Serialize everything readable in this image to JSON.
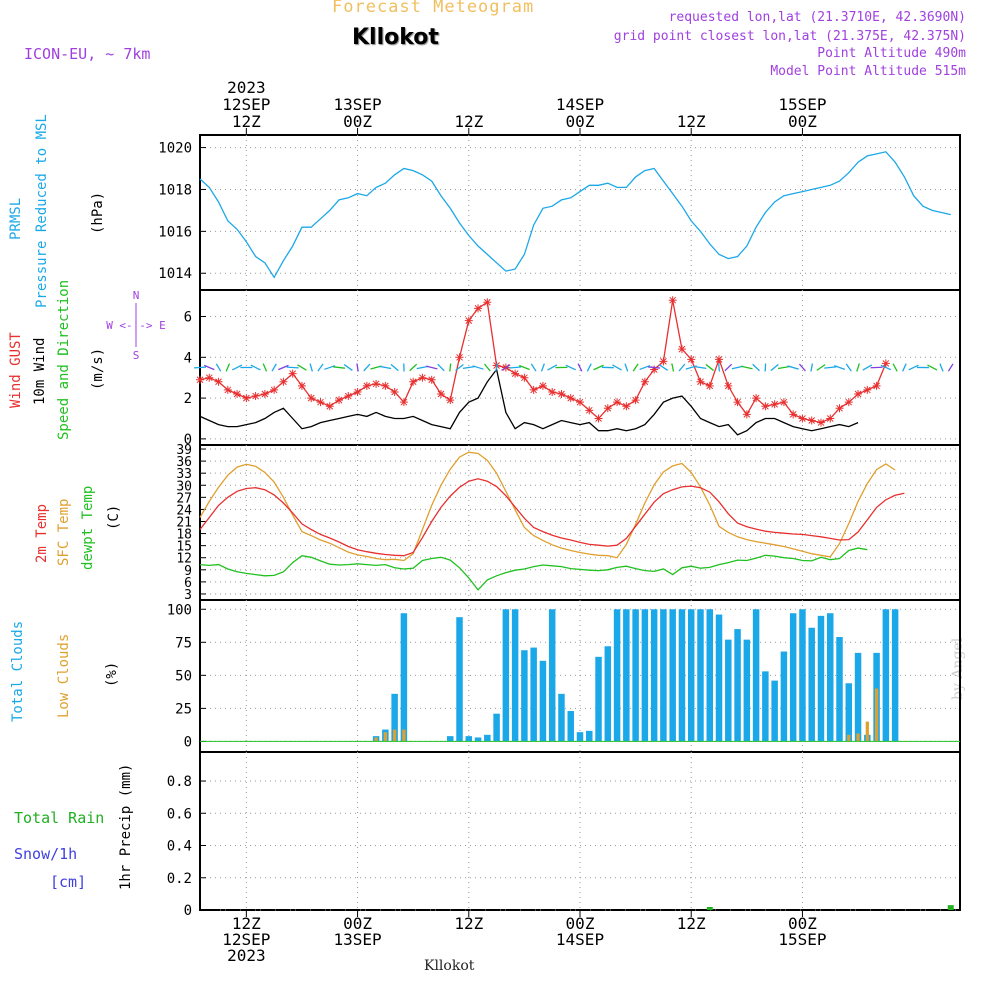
{
  "header": {
    "title": "Forecast Meteogram",
    "location": "Kllokot",
    "model": "ICON-EU, ~ 7km",
    "requested": "requested lon,lat (21.3710E, 42.3690N)",
    "grid_point": "grid point closest lon,lat (21.375E, 42.375N)",
    "point_altitude": "Point Altitude 490m",
    "model_altitude": "Model Point Altitude 515m"
  },
  "footer": {
    "location": "Kllokot",
    "watermark": "by Angel"
  },
  "colors": {
    "pressure": "#1ba8e8",
    "gust": "#e83030",
    "wind": "#000000",
    "wind_dir": "#20c020",
    "temp2m": "#e83030",
    "sfc": "#e0a030",
    "dewpt": "#20c020",
    "total_clouds": "#1ba8e8",
    "low_clouds": "#e0a030",
    "rain": "#20b020",
    "snow": "#4040e0",
    "compass": "#a040e0",
    "grid": "#999999"
  },
  "time_axis": {
    "top_year": "2023",
    "ticks": [
      {
        "hour": 0,
        "top": [
          "12SEP",
          "12Z"
        ],
        "bottom": [
          "12Z",
          "12SEP",
          "2023"
        ]
      },
      {
        "hour": 12,
        "top": [
          "13SEP",
          "00Z"
        ],
        "bottom": [
          "00Z",
          "13SEP"
        ]
      },
      {
        "hour": 24,
        "top": [
          "",
          "12Z"
        ],
        "bottom": [
          "12Z"
        ]
      },
      {
        "hour": 36,
        "top": [
          "14SEP",
          "00Z"
        ],
        "bottom": [
          "00Z",
          "14SEP"
        ]
      },
      {
        "hour": 48,
        "top": [
          "",
          "12Z"
        ],
        "bottom": [
          "12Z"
        ]
      },
      {
        "hour": 60,
        "top": [
          "15SEP",
          "00Z"
        ],
        "bottom": [
          "00Z",
          "15SEP"
        ]
      }
    ]
  },
  "panel_labels": {
    "pressure": [
      "PRMSL",
      "Pressure Reduced to MSL",
      "(hPa)"
    ],
    "wind": [
      "Wind GUST",
      "10m Wind",
      "Speed and Direction",
      "(m/s)"
    ],
    "compass": [
      "N",
      "W <-|-> E",
      "S"
    ],
    "temp": [
      "2m Temp",
      "SFC Temp",
      "dewpt Temp",
      "(C)"
    ],
    "clouds": [
      "Total Clouds",
      "Low Clouds",
      "(%)"
    ],
    "precip": [
      "Total  Rain",
      "Snow/1h",
      "[cm]",
      "1hr Precip (mm)"
    ]
  },
  "chart_data": [
    {
      "id": "pressure",
      "type": "line",
      "ylabel": "(hPa)",
      "ylim": [
        1013.2,
        1020.6
      ],
      "yticks": [
        "1014",
        "1016",
        "1018",
        "1020"
      ],
      "x_hours": [
        -5,
        -4,
        -3,
        -2,
        -1,
        0,
        1,
        2,
        3,
        4,
        5,
        6,
        7,
        8,
        9,
        10,
        11,
        12,
        13,
        14,
        15,
        16,
        17,
        18,
        19,
        20,
        21,
        22,
        23,
        24,
        25,
        26,
        27,
        28,
        29,
        30,
        31,
        32,
        33,
        34,
        35,
        36,
        37,
        38,
        39,
        40,
        41,
        42,
        43,
        44,
        45,
        46,
        47,
        48,
        49,
        50,
        51,
        52,
        53,
        54,
        55,
        56,
        57,
        58,
        59,
        60,
        61,
        62,
        63,
        64,
        65,
        66,
        67,
        68,
        69,
        70,
        71,
        72,
        73,
        74,
        75,
        76
      ],
      "series": [
        {
          "name": "PRMSL",
          "values": [
            1018.5,
            1018.1,
            1017.4,
            1016.5,
            1016.1,
            1015.5,
            1014.8,
            1014.5,
            1013.8,
            1014.6,
            1015.3,
            1016.2,
            1016.2,
            1016.6,
            1017.0,
            1017.5,
            1017.6,
            1017.8,
            1017.7,
            1018.1,
            1018.3,
            1018.7,
            1019.0,
            1018.9,
            1018.7,
            1018.4,
            1017.7,
            1017.1,
            1016.4,
            1015.8,
            1015.3,
            1014.9,
            1014.5,
            1014.1,
            1014.2,
            1014.9,
            1016.3,
            1017.1,
            1017.2,
            1017.5,
            1017.6,
            1017.9,
            1018.2,
            1018.2,
            1018.3,
            1018.1,
            1018.1,
            1018.6,
            1018.9,
            1019.0,
            1018.4,
            1017.8,
            1017.2,
            1016.5,
            1016.0,
            1015.4,
            1014.9,
            1014.7,
            1014.8,
            1015.3,
            1016.2,
            1016.9,
            1017.4,
            1017.7,
            1017.8,
            1017.9,
            1018.0,
            1018.1,
            1018.2,
            1018.4,
            1018.8,
            1019.3,
            1019.6,
            1019.7,
            1019.8,
            1019.3,
            1018.6,
            1017.7,
            1017.2,
            1017.0,
            1016.9,
            1016.8
          ]
        }
      ]
    },
    {
      "id": "wind",
      "type": "line",
      "ylabel": "(m/s)",
      "ylim": [
        -0.3,
        7.3
      ],
      "yticks": [
        "0",
        "2",
        "4",
        "6"
      ],
      "x_hours": [
        -5,
        -4,
        -3,
        -2,
        -1,
        0,
        1,
        2,
        3,
        4,
        5,
        6,
        7,
        8,
        9,
        10,
        11,
        12,
        13,
        14,
        15,
        16,
        17,
        18,
        19,
        20,
        21,
        22,
        23,
        24,
        25,
        26,
        27,
        28,
        29,
        30,
        31,
        32,
        33,
        34,
        35,
        36,
        37,
        38,
        39,
        40,
        41,
        42,
        43,
        44,
        45,
        46,
        47,
        48,
        49,
        50,
        51,
        52,
        53,
        54,
        55,
        56,
        57,
        58,
        59,
        60,
        61,
        62,
        63,
        64,
        65,
        66,
        67,
        68,
        69,
        70,
        71,
        72,
        73,
        74,
        75,
        76
      ],
      "series": [
        {
          "name": "Wind GUST",
          "values": [
            2.9,
            3.0,
            2.8,
            2.4,
            2.2,
            2.0,
            2.1,
            2.2,
            2.4,
            2.8,
            3.2,
            2.6,
            2.0,
            1.8,
            1.6,
            1.9,
            2.1,
            2.3,
            2.6,
            2.7,
            2.6,
            2.3,
            1.8,
            2.8,
            3.0,
            2.9,
            2.2,
            1.9,
            4.0,
            5.8,
            6.4,
            6.7,
            3.6,
            3.5,
            3.2,
            3.0,
            2.4,
            2.6,
            2.3,
            2.2,
            2.0,
            1.8,
            1.4,
            1.0,
            1.5,
            1.8,
            1.6,
            1.9,
            2.8,
            3.4,
            3.8,
            6.8,
            4.4,
            3.9,
            2.8,
            2.6,
            3.9,
            2.6,
            1.8,
            1.2,
            2.0,
            1.6,
            1.7,
            1.8,
            1.2,
            1.0,
            0.9,
            0.8,
            1.0,
            1.5,
            1.8,
            2.2,
            2.4,
            2.6,
            3.7
          ]
        },
        {
          "name": "10m Wind",
          "values": [
            1.1,
            0.9,
            0.7,
            0.6,
            0.6,
            0.7,
            0.8,
            1.0,
            1.3,
            1.5,
            1.0,
            0.5,
            0.6,
            0.8,
            0.9,
            1.0,
            1.1,
            1.2,
            1.1,
            1.3,
            1.1,
            1.0,
            1.0,
            1.1,
            0.9,
            0.7,
            0.6,
            0.5,
            1.3,
            1.8,
            2.0,
            2.8,
            3.4,
            1.3,
            0.5,
            0.8,
            0.7,
            0.5,
            0.7,
            0.9,
            0.8,
            0.7,
            0.8,
            0.4,
            0.4,
            0.5,
            0.4,
            0.5,
            0.7,
            1.2,
            1.8,
            2.0,
            2.1,
            1.6,
            1.0,
            0.8,
            0.6,
            0.7,
            0.2,
            0.4,
            0.8,
            1.0,
            1.0,
            0.8,
            0.6,
            0.5,
            0.4,
            0.5,
            0.6,
            0.7,
            0.6,
            0.8
          ]
        }
      ]
    },
    {
      "id": "temp",
      "type": "line",
      "ylabel": "(C)",
      "ylim": [
        1.5,
        40
      ],
      "yticks": [
        "3",
        "6",
        "9",
        "12",
        "15",
        "18",
        "21",
        "24",
        "27",
        "30",
        "33",
        "36",
        "39"
      ],
      "x_hours": [
        -5,
        -4,
        -3,
        -2,
        -1,
        0,
        1,
        2,
        3,
        4,
        5,
        6,
        7,
        8,
        9,
        10,
        11,
        12,
        13,
        14,
        15,
        16,
        17,
        18,
        19,
        20,
        21,
        22,
        23,
        24,
        25,
        26,
        27,
        28,
        29,
        30,
        31,
        32,
        33,
        34,
        35,
        36,
        37,
        38,
        39,
        40,
        41,
        42,
        43,
        44,
        45,
        46,
        47,
        48,
        49,
        50,
        51,
        52,
        53,
        54,
        55,
        56,
        57,
        58,
        59,
        60,
        61,
        62,
        63,
        64,
        65,
        66,
        67,
        68,
        69,
        70,
        71,
        72,
        73,
        74,
        75,
        76
      ],
      "series": [
        {
          "name": "2m Temp",
          "values": [
            19,
            22,
            25,
            27,
            28.5,
            29.2,
            29.4,
            28.9,
            27.6,
            25.6,
            23.1,
            20.4,
            19.0,
            17.8,
            16.9,
            15.9,
            14.8,
            14.0,
            13.5,
            13.1,
            12.8,
            12.6,
            12.5,
            13.3,
            17.0,
            21.0,
            24.5,
            27.3,
            29.5,
            31.0,
            31.6,
            31.0,
            29.7,
            27.4,
            24.6,
            21.8,
            19.5,
            18.5,
            17.6,
            16.9,
            16.4,
            15.8,
            15.3,
            15.1,
            14.9,
            15.1,
            16.8,
            19.8,
            22.8,
            25.8,
            27.9,
            28.9,
            29.6,
            29.8,
            29.4,
            28.3,
            25.9,
            22.9,
            20.6,
            19.7,
            19.1,
            18.6,
            18.3,
            18.1,
            17.9,
            17.8,
            17.5,
            17.2,
            16.8,
            16.4,
            16.5,
            18.4,
            21.4,
            24.5,
            26.4,
            27.5,
            28.0
          ]
        },
        {
          "name": "SFC Temp",
          "values": [
            22,
            26,
            29.5,
            32.5,
            34.5,
            35.2,
            34.7,
            33.2,
            30.8,
            27.0,
            22.6,
            18.5,
            17.5,
            16.4,
            15.6,
            14.5,
            13.4,
            12.7,
            12.3,
            11.8,
            11.5,
            11.6,
            11.3,
            13.0,
            19.0,
            25.0,
            30.0,
            34.0,
            37.0,
            38.2,
            37.9,
            36.2,
            33.0,
            28.5,
            23.9,
            19.5,
            17.5,
            16.3,
            15.2,
            14.4,
            13.8,
            13.3,
            12.9,
            12.6,
            12.5,
            12.0,
            15.3,
            20.3,
            25.6,
            30.1,
            33.3,
            34.8,
            35.4,
            33.2,
            29.6,
            25.1,
            19.8,
            18.3,
            17.2,
            16.5,
            16.0,
            15.6,
            15.2,
            14.8,
            14.2,
            13.6,
            13.0,
            12.6,
            12.2,
            15.5,
            20.5,
            26.0,
            30.4,
            33.9,
            35.3,
            33.8
          ]
        },
        {
          "name": "dewpt Temp",
          "values": [
            10.3,
            10.1,
            10.3,
            9.2,
            8.5,
            8.1,
            7.8,
            7.5,
            7.6,
            8.5,
            10.8,
            12.5,
            12.1,
            11.2,
            10.4,
            10.2,
            10.3,
            10.5,
            10.3,
            10.1,
            10.3,
            9.5,
            9.2,
            9.4,
            11.3,
            11.8,
            12.1,
            11.4,
            9.5,
            7.0,
            4.0,
            6.5,
            7.5,
            8.3,
            8.9,
            9.2,
            9.8,
            10.2,
            10.0,
            9.8,
            9.3,
            9.1,
            8.9,
            8.8,
            9.0,
            9.6,
            9.9,
            9.3,
            8.8,
            8.6,
            9.2,
            7.8,
            9.5,
            9.9,
            9.4,
            9.6,
            10.3,
            10.8,
            11.4,
            11.3,
            11.9,
            12.6,
            12.4,
            12.0,
            11.8,
            11.3,
            11.2,
            12.1,
            11.5,
            11.8,
            13.8,
            14.4,
            14.0
          ]
        }
      ]
    },
    {
      "id": "clouds",
      "type": "bar",
      "ylabel": "(%)",
      "ylim": [
        -8,
        107
      ],
      "yticks": [
        "0",
        "25",
        "50",
        "75",
        "100"
      ],
      "x_hours": [
        -5,
        -4,
        -3,
        -2,
        -1,
        0,
        1,
        2,
        3,
        4,
        5,
        6,
        7,
        8,
        9,
        10,
        11,
        12,
        13,
        14,
        15,
        16,
        17,
        18,
        19,
        20,
        21,
        22,
        23,
        24,
        25,
        26,
        27,
        28,
        29,
        30,
        31,
        32,
        33,
        34,
        35,
        36,
        37,
        38,
        39,
        40,
        41,
        42,
        43,
        44,
        45,
        46,
        47,
        48,
        49,
        50,
        51,
        52,
        53,
        54,
        55,
        56,
        57,
        58,
        59,
        60,
        61,
        62,
        63,
        64,
        65,
        66,
        67,
        68,
        69,
        70,
        71,
        72,
        73,
        74,
        75,
        76
      ],
      "series": [
        {
          "name": "Total Clouds",
          "values": [
            0,
            0,
            0,
            0,
            0,
            0,
            0,
            0,
            0,
            0,
            0,
            0,
            0,
            0,
            0,
            0,
            0,
            0,
            0,
            4,
            9,
            36,
            97,
            0,
            0,
            0,
            0,
            4,
            94,
            4,
            3,
            5,
            21,
            100,
            100,
            69,
            71,
            61,
            100,
            36,
            23,
            7,
            8,
            64,
            72,
            100,
            100,
            100,
            100,
            100,
            100,
            100,
            100,
            100,
            100,
            100,
            96,
            77,
            85,
            77,
            100,
            53,
            46,
            68,
            97,
            100,
            86,
            95,
            97,
            79,
            44,
            67,
            5,
            67,
            100,
            100
          ]
        },
        {
          "name": "Low Clouds",
          "values": [
            0,
            0,
            0,
            0,
            0,
            0,
            0,
            0,
            0,
            0,
            0,
            0,
            0,
            0,
            0,
            0,
            0,
            0,
            0,
            3,
            7,
            9,
            9,
            0,
            0,
            0,
            0,
            0,
            0,
            0,
            0,
            0,
            0,
            0,
            0,
            0,
            0,
            0,
            0,
            0,
            0,
            0,
            0,
            0,
            0,
            0,
            0,
            0,
            0,
            0,
            0,
            0,
            0,
            0,
            0,
            0,
            0,
            0,
            0,
            0,
            0,
            0,
            0,
            0,
            0,
            0,
            0,
            0,
            0,
            0,
            5,
            6,
            15,
            40
          ]
        }
      ]
    },
    {
      "id": "precip",
      "type": "bar",
      "ylabel": "1hr Precip (mm)",
      "ylim": [
        0,
        0.98
      ],
      "yticks": [
        "0",
        "0.2",
        "0.4",
        "0.6",
        "0.8"
      ],
      "series": [
        {
          "name": "Total Rain",
          "points": [
            {
              "hour": 50,
              "value": 0.01
            },
            {
              "hour": 76,
              "value": 0.03
            }
          ]
        },
        {
          "name": "Snow/1h",
          "points": []
        }
      ]
    }
  ]
}
